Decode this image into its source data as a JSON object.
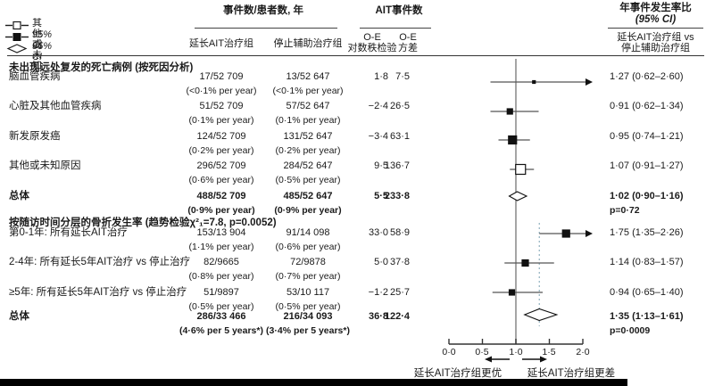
{
  "legend": {
    "items": [
      {
        "icon": "open-square-dash",
        "label": "其他或未知"
      },
      {
        "icon": "filled-square-dash",
        "label": "95% CI"
      },
      {
        "icon": "open-diamond",
        "label": "95% CI"
      }
    ]
  },
  "header": {
    "group1": "事件数/患者数, 年",
    "group2": "AIT事件数",
    "group3_line1": "年事件发生率比",
    "group3_line2": "(95% CI)",
    "col_extended": "延长AIT治疗组",
    "col_stopped": "停止辅助治疗组",
    "col_oe_line1": "O-E",
    "col_oe_line2": "对数秩检验",
    "col_var_line1": "O-E",
    "col_var_line2": "方差",
    "col_ratio_line1": "延长AIT治疗组 vs",
    "col_ratio_line2": "停止辅助治疗组"
  },
  "sections": [
    {
      "title": "未出现远处复发的死亡病例 (按死因分析)",
      "rows": [
        {
          "label": "脑血管疾病",
          "ext": "17/52 709",
          "ext_sub": "(<0·1% per year)",
          "stop": "13/52 647",
          "stop_sub": "(<0·1% per year)",
          "oe": "1·8",
          "var": "7·5",
          "ratio": "1·27 (0·62–2·60)"
        },
        {
          "label": "心脏及其他血管疾病",
          "ext": "51/52 709",
          "ext_sub": "(0·1% per year)",
          "stop": "57/52 647",
          "stop_sub": "(0·1% per year)",
          "oe": "−2·4",
          "var": "26·5",
          "ratio": "0·91 (0·62–1·34)"
        },
        {
          "label": "新发原发癌",
          "ext": "124/52 709",
          "ext_sub": "(0·2% per year)",
          "stop": "131/52 647",
          "stop_sub": "(0·2% per year)",
          "oe": "−3·4",
          "var": "63·1",
          "ratio": "0·95 (0·74–1·21)"
        },
        {
          "label": "其他或未知原因",
          "ext": "296/52 709",
          "ext_sub": "(0·6% per year)",
          "stop": "284/52 647",
          "stop_sub": "(0·5% per year)",
          "oe": "9·5",
          "var": "136·7",
          "ratio": "1·07 (0·91–1·27)"
        }
      ],
      "total": {
        "label": "总体",
        "ext": "488/52 709",
        "ext_sub": "(0·9% per year)",
        "stop": "485/52 647",
        "stop_sub": "(0·9% per year)",
        "oe": "5·5",
        "var": "233·8",
        "ratio": "1·02 (0·90–1·16)",
        "p": "p=0·72"
      }
    },
    {
      "title": "按随访时间分层的骨折发生率 (趋势检验χ²₁=7.8, p=0.0052)",
      "rows": [
        {
          "label": "第0-1年: 所有延长AIT治疗",
          "ext": "153/13 904",
          "ext_sub": "(1·1% per year)",
          "stop": "91/14 098",
          "stop_sub": "(0·6% per year)",
          "oe": "33·0",
          "var": "58·9",
          "ratio": "1·75 (1·35–2·26)"
        },
        {
          "label": "2-4年: 所有延长5年AIT治疗 vs 停止治疗",
          "ext": "82/9665",
          "ext_sub": "(0·8% per year)",
          "stop": "72/9878",
          "stop_sub": "(0·7% per year)",
          "oe": "5·0",
          "var": "37·8",
          "ratio": "1·14 (0·83–1·57)"
        },
        {
          "label": "≥5年: 所有延长5年AIT治疗 vs 停止治疗",
          "ext": "51/9897",
          "ext_sub": "(0·5% per year)",
          "stop": "53/10 117",
          "stop_sub": "(0·5% per year)",
          "oe": "−1·2",
          "var": "25·7",
          "ratio": "0·94 (0·65–1·40)"
        }
      ],
      "total": {
        "label": "总体",
        "ext": "286/33 466",
        "ext_sub": "(4·6% per 5 years*)",
        "stop": "216/34 093",
        "stop_sub": "(3·4% per 5 years*)",
        "oe": "36·8",
        "var": "122·4",
        "ratio": "1·35 (1·13–1·61)",
        "p": "p=0·0009"
      }
    }
  ],
  "footer": {
    "axis_ticks": [
      "0·0",
      "0·5",
      "1·0",
      "1·5",
      "2·0"
    ],
    "better_label": "延长AIT治疗组更优",
    "worse_label": "延长AIT治疗组更差"
  },
  "colors": {
    "text": "#1a1a1a",
    "reference_line": "#7f7f7f",
    "ci_line": "#555555",
    "marker": "#111111",
    "dotted_line": "#8fb0bf",
    "axis": "#333333"
  },
  "chart_data": {
    "type": "forest",
    "xlabel": "年事件发生率比 (95% CI)",
    "x_axis": {
      "range": [
        0.0,
        2.0
      ],
      "ticks": [
        0.0,
        0.5,
        1.0,
        1.5,
        2.0
      ],
      "reference_line": 1.0
    },
    "direction_labels": {
      "left": "延长AIT治疗组更优",
      "right": "延长AIT治疗组更差"
    },
    "groups": [
      {
        "name": "未出现远处复发的死亡病例 (按死因分析)",
        "rows": [
          {
            "label": "脑血管疾病",
            "rr": 1.27,
            "ci": [
              0.62,
              2.6
            ],
            "oe": 1.8,
            "variance": 7.5,
            "marker": "filled-square",
            "size": 3
          },
          {
            "label": "心脏及其他血管疾病",
            "rr": 0.91,
            "ci": [
              0.62,
              1.34
            ],
            "oe": -2.4,
            "variance": 26.5,
            "marker": "filled-square",
            "size": 6
          },
          {
            "label": "新发原发癌",
            "rr": 0.95,
            "ci": [
              0.74,
              1.21
            ],
            "oe": -3.4,
            "variance": 63.1,
            "marker": "filled-square",
            "size": 9
          },
          {
            "label": "其他或未知原因",
            "rr": 1.07,
            "ci": [
              0.91,
              1.27
            ],
            "oe": 9.5,
            "variance": 136.7,
            "marker": "open-square",
            "size": 11
          }
        ],
        "overall": {
          "label": "总体",
          "rr": 1.02,
          "ci": [
            0.9,
            1.16
          ],
          "oe": 5.5,
          "variance": 233.8,
          "marker": "diamond",
          "p": "p=0·72"
        }
      },
      {
        "name": "按随访时间分层的骨折发生率 (趋势检验χ²₁=7.8, p=0.0052)",
        "dotted_reference": 1.35,
        "rows": [
          {
            "label": "第0-1年: 所有延长AIT治疗",
            "rr": 1.75,
            "ci": [
              1.35,
              2.26
            ],
            "oe": 33.0,
            "variance": 58.9,
            "marker": "filled-square",
            "size": 8
          },
          {
            "label": "2-4年: 所有延长5年AIT治疗 vs 停止治疗",
            "rr": 1.14,
            "ci": [
              0.83,
              1.57
            ],
            "oe": 5.0,
            "variance": 37.8,
            "marker": "filled-square",
            "size": 7
          },
          {
            "label": "≥5年: 所有延长5年AIT治疗 vs 停止治疗",
            "rr": 0.94,
            "ci": [
              0.65,
              1.4
            ],
            "oe": -1.2,
            "variance": 25.7,
            "marker": "filled-square",
            "size": 6
          }
        ],
        "overall": {
          "label": "总体",
          "rr": 1.35,
          "ci": [
            1.13,
            1.61
          ],
          "oe": 36.8,
          "variance": 122.4,
          "marker": "diamond",
          "p": "p=0·0009"
        }
      }
    ]
  }
}
